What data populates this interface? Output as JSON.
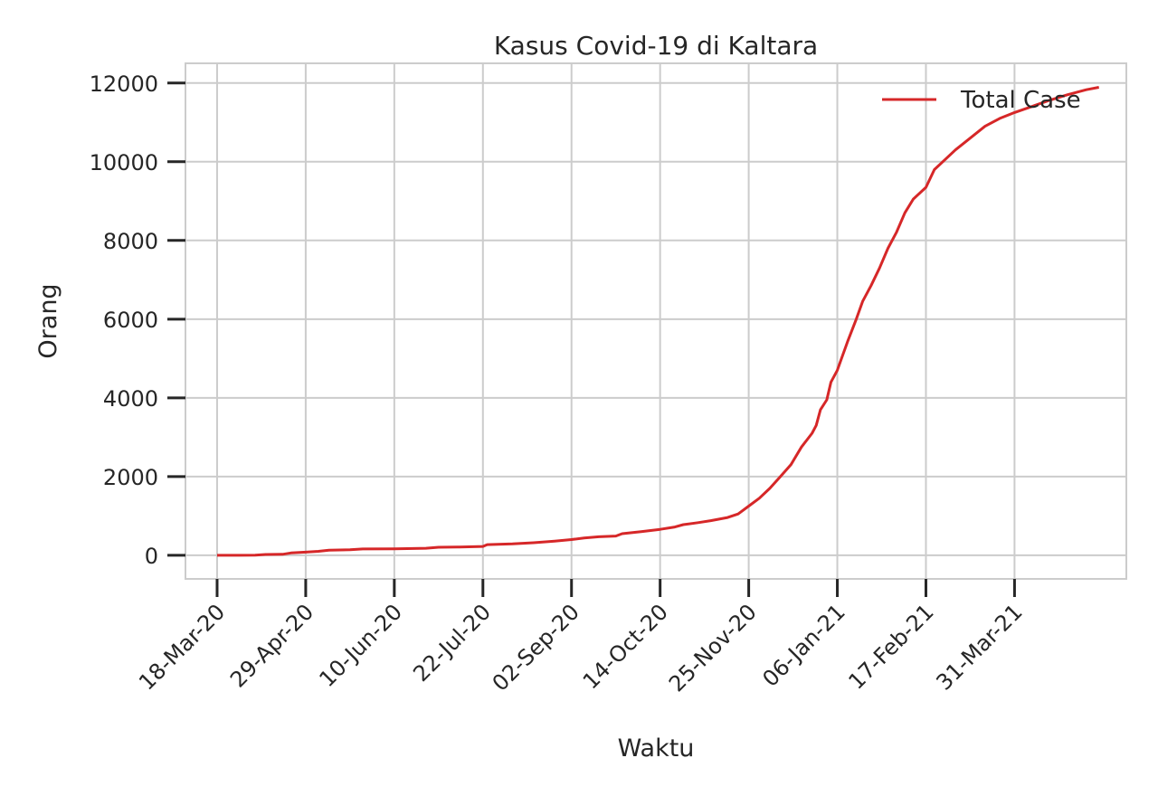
{
  "chart_data": {
    "type": "line",
    "title": "Kasus Covid-19 di Kaltara",
    "xlabel": "Waktu",
    "ylabel": "Orang",
    "x_tick_labels": [
      "18-Mar-20",
      "29-Apr-20",
      "10-Jun-20",
      "22-Jul-20",
      "02-Sep-20",
      "14-Oct-20",
      "25-Nov-20",
      "06-Jan-21",
      "17-Feb-21",
      "31-Mar-21"
    ],
    "y_ticks": [
      0,
      2000,
      4000,
      6000,
      8000,
      10000,
      12000
    ],
    "y_tick_labels": [
      "0",
      "2000",
      "4000",
      "6000",
      "8000",
      "10000",
      "12000"
    ],
    "xlim": [
      "2020-03-03",
      "2021-05-23"
    ],
    "ylim": [
      -600,
      12500
    ],
    "grid": true,
    "legend_position": "upper right",
    "series": [
      {
        "name": "Total Case",
        "color": "#d62728",
        "points": [
          [
            "2020-03-18",
            0
          ],
          [
            "2020-03-28",
            0
          ],
          [
            "2020-04-05",
            5
          ],
          [
            "2020-04-10",
            20
          ],
          [
            "2020-04-18",
            25
          ],
          [
            "2020-04-22",
            60
          ],
          [
            "2020-04-29",
            80
          ],
          [
            "2020-05-05",
            100
          ],
          [
            "2020-05-10",
            130
          ],
          [
            "2020-05-20",
            140
          ],
          [
            "2020-05-26",
            160
          ],
          [
            "2020-06-10",
            165
          ],
          [
            "2020-06-25",
            180
          ],
          [
            "2020-07-01",
            205
          ],
          [
            "2020-07-10",
            210
          ],
          [
            "2020-07-22",
            225
          ],
          [
            "2020-07-24",
            270
          ],
          [
            "2020-08-05",
            290
          ],
          [
            "2020-08-15",
            320
          ],
          [
            "2020-08-25",
            360
          ],
          [
            "2020-09-02",
            400
          ],
          [
            "2020-09-08",
            440
          ],
          [
            "2020-09-15",
            470
          ],
          [
            "2020-09-23",
            490
          ],
          [
            "2020-09-26",
            550
          ],
          [
            "2020-10-05",
            600
          ],
          [
            "2020-10-14",
            660
          ],
          [
            "2020-10-21",
            720
          ],
          [
            "2020-10-25",
            780
          ],
          [
            "2020-11-01",
            830
          ],
          [
            "2020-11-07",
            880
          ],
          [
            "2020-11-15",
            960
          ],
          [
            "2020-11-20",
            1050
          ],
          [
            "2020-11-25",
            1250
          ],
          [
            "2020-11-30",
            1450
          ],
          [
            "2020-12-05",
            1700
          ],
          [
            "2020-12-10",
            2000
          ],
          [
            "2020-12-15",
            2300
          ],
          [
            "2020-12-20",
            2750
          ],
          [
            "2020-12-25",
            3100
          ],
          [
            "2020-12-27",
            3300
          ],
          [
            "2020-12-29",
            3700
          ],
          [
            "2021-01-01",
            3950
          ],
          [
            "2021-01-03",
            4400
          ],
          [
            "2021-01-06",
            4700
          ],
          [
            "2021-01-08",
            5000
          ],
          [
            "2021-01-11",
            5450
          ],
          [
            "2021-01-15",
            6000
          ],
          [
            "2021-01-18",
            6450
          ],
          [
            "2021-01-22",
            6850
          ],
          [
            "2021-01-26",
            7300
          ],
          [
            "2021-01-30",
            7800
          ],
          [
            "2021-02-03",
            8200
          ],
          [
            "2021-02-07",
            8700
          ],
          [
            "2021-02-11",
            9050
          ],
          [
            "2021-02-17",
            9350
          ],
          [
            "2021-02-21",
            9800
          ],
          [
            "2021-02-25",
            10000
          ],
          [
            "2021-03-03",
            10300
          ],
          [
            "2021-03-10",
            10600
          ],
          [
            "2021-03-17",
            10900
          ],
          [
            "2021-03-24",
            11100
          ],
          [
            "2021-03-31",
            11250
          ],
          [
            "2021-04-08",
            11400
          ],
          [
            "2021-04-16",
            11550
          ],
          [
            "2021-04-25",
            11700
          ],
          [
            "2021-05-04",
            11830
          ],
          [
            "2021-05-10",
            11890
          ]
        ]
      }
    ]
  }
}
